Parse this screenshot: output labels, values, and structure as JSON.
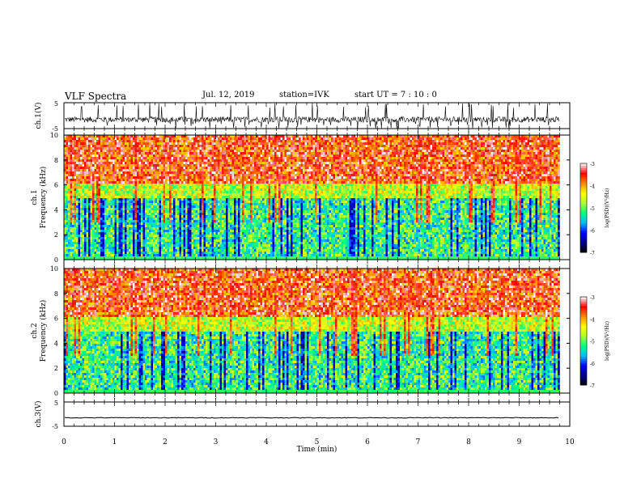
{
  "header": {
    "title": "VLF Spectra",
    "date": "Jul. 12, 2019",
    "station": "station=IVK",
    "start_ut": "start UT = 7 : 10 : 0"
  },
  "colors": {
    "colormap": [
      "#000000",
      "#00008b",
      "#0000ff",
      "#00bfff",
      "#00ff7f",
      "#adff2f",
      "#ffff00",
      "#ff8c00",
      "#ff0000",
      "#ffffff"
    ],
    "trace": "#000000",
    "frame": "#000000"
  },
  "chart_data": [
    {
      "type": "line",
      "name": "ch1-waveform",
      "ylabel": "ch.1(V)",
      "yticks": [
        "5",
        "-5"
      ],
      "ylim": [
        -5,
        5
      ],
      "xlim": [
        0,
        10
      ],
      "note": "dense noisy waveform ~ -1.5 V mean with spikes to ±5 V up to 9.8 min"
    },
    {
      "type": "heatmap",
      "name": "ch1-spectrogram",
      "ylabel": "ch.1 Frequency (kHz)",
      "yticks": [
        "0",
        "2",
        "4",
        "6",
        "8",
        "10"
      ],
      "ylim": [
        0,
        10
      ],
      "xlim": [
        0,
        10
      ],
      "data_end_min": 9.8,
      "colorbar": {
        "label": "log(PSD)(V²/Hz)",
        "ticks": [
          "-3",
          "-4",
          "-5",
          "-6",
          "-7"
        ],
        "range": [
          -7,
          -3
        ]
      }
    },
    {
      "type": "heatmap",
      "name": "ch2-spectrogram",
      "ylabel": "ch.2 Frequency (kHz)",
      "yticks": [
        "0",
        "2",
        "4",
        "6",
        "8",
        "10"
      ],
      "ylim": [
        0,
        10
      ],
      "xlim": [
        0,
        10
      ],
      "data_end_min": 9.8,
      "colorbar": {
        "label": "log(PSD)(V²/Hz)",
        "ticks": [
          "-3",
          "-4",
          "-5",
          "-6",
          "-7"
        ],
        "range": [
          -7,
          -3
        ]
      }
    },
    {
      "type": "line",
      "name": "ch3-waveform",
      "ylabel": "ch.3(V)",
      "yticks": [
        "5",
        "-5"
      ],
      "ylim": [
        -5,
        5
      ],
      "xlim": [
        0,
        10
      ],
      "note": "flat trace near -1.5 V"
    }
  ],
  "xaxis": {
    "label": "Time (min)",
    "ticks": [
      "0",
      "1",
      "2",
      "3",
      "4",
      "5",
      "6",
      "7",
      "8",
      "9",
      "10"
    ]
  }
}
